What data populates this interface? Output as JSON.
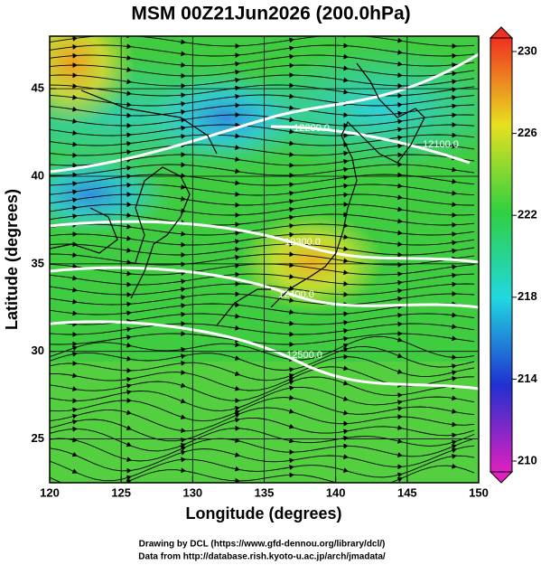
{
  "title": "MSM 00Z21Jun2026 (200.0hPa)",
  "x_axis": {
    "label": "Longitude (degrees)",
    "lim": [
      120,
      150
    ],
    "ticks": [
      120,
      125,
      130,
      135,
      140,
      145,
      150
    ]
  },
  "y_axis": {
    "label": "Latitude  (degrees)",
    "lim": [
      22.5,
      48
    ],
    "ticks": [
      25,
      30,
      35,
      40,
      45
    ]
  },
  "colorbar": {
    "lim": [
      210,
      230
    ],
    "ticks": [
      210,
      214,
      218,
      222,
      226,
      230
    ]
  },
  "contour_labels": [
    "12200.0",
    "12100.0",
    "12300.0",
    "12400.0",
    "12500.0"
  ],
  "credits": [
    "Drawing by DCL (https://www.gfd-dennou.org/library/dcl/)",
    "Data from http://database.rish.kyoto-u.ac.jp/arch/jmadata/"
  ]
}
